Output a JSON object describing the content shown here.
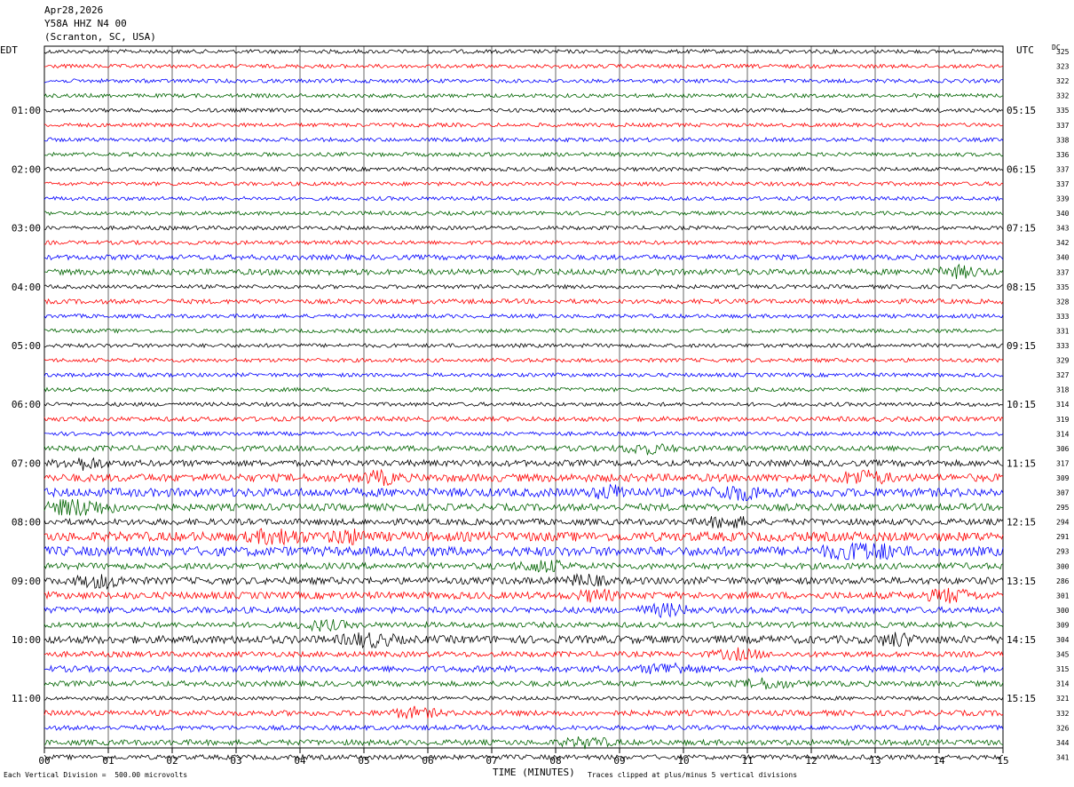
{
  "header": {
    "date": "Apr28,2026",
    "station": "Y58A HHZ N4 00",
    "location": "(Scranton, SC, USA)"
  },
  "left_timezone": "EDT",
  "right_timezone": "UTC",
  "dc_header": "DC",
  "bottom": {
    "xlabel": "TIME (MINUTES)",
    "vertical_division": "Each Vertical Division =  500.00 microvolts",
    "clip_note": "Traces clipped at plus/minus 5 vertical divisions"
  },
  "colors": {
    "black": "#000000",
    "red": "#ff0000",
    "blue": "#0000ff",
    "green": "#006400",
    "grid": "#000000"
  },
  "chart_data": {
    "type": "line",
    "title": "Y58A HHZ N4 00",
    "xlabel": "TIME (MINUTES)",
    "ylabel": "",
    "xlim": [
      0,
      15
    ],
    "x_ticks": [
      "00",
      "01",
      "02",
      "03",
      "04",
      "05",
      "06",
      "07",
      "08",
      "09",
      "10",
      "11",
      "12",
      "13",
      "14",
      "15"
    ],
    "traces_per_hour": 4,
    "trace_colors": [
      "#000000",
      "#ff0000",
      "#0000ff",
      "#006400"
    ],
    "left_time_labels": [
      {
        "row": 4,
        "label": "01:00"
      },
      {
        "row": 8,
        "label": "02:00"
      },
      {
        "row": 12,
        "label": "03:00"
      },
      {
        "row": 16,
        "label": "04:00"
      },
      {
        "row": 20,
        "label": "05:00"
      },
      {
        "row": 24,
        "label": "06:00"
      },
      {
        "row": 28,
        "label": "07:00"
      },
      {
        "row": 32,
        "label": "08:00"
      },
      {
        "row": 36,
        "label": "09:00"
      },
      {
        "row": 40,
        "label": "10:00"
      },
      {
        "row": 44,
        "label": "11:00"
      }
    ],
    "right_time_labels": [
      {
        "row": 4,
        "label": "05:15"
      },
      {
        "row": 8,
        "label": "06:15"
      },
      {
        "row": 12,
        "label": "07:15"
      },
      {
        "row": 16,
        "label": "08:15"
      },
      {
        "row": 20,
        "label": "09:15"
      },
      {
        "row": 24,
        "label": "10:15"
      },
      {
        "row": 28,
        "label": "11:15"
      },
      {
        "row": 32,
        "label": "12:15"
      },
      {
        "row": 36,
        "label": "13:15"
      },
      {
        "row": 40,
        "label": "14:15"
      },
      {
        "row": 44,
        "label": "15:15"
      }
    ],
    "dc_offsets": [
      "325",
      "323",
      "322",
      "332",
      "335",
      "337",
      "338",
      "336",
      "337",
      "337",
      "339",
      "340",
      "343",
      "342",
      "340",
      "337",
      "335",
      "328",
      "333",
      "331",
      "333",
      "329",
      "327",
      "318",
      "314",
      "319",
      "314",
      "306",
      "317",
      "309",
      "307",
      "295",
      "294",
      "291",
      "293",
      "300",
      "286",
      "301",
      "300",
      "309",
      "304",
      "345",
      "315",
      "314",
      "321",
      "332",
      "326",
      "344",
      "341"
    ],
    "trace_activity": [
      1,
      1,
      1,
      1,
      1,
      1,
      1,
      1,
      1,
      1,
      1,
      1,
      1,
      1,
      1.3,
      1.5,
      1,
      1.2,
      1,
      1,
      1,
      1,
      1,
      1,
      1,
      1.2,
      1,
      1.4,
      1.6,
      2,
      2.2,
      1.8,
      1.6,
      2.4,
      2.4,
      1.6,
      1.8,
      1.8,
      1.6,
      1.4,
      2,
      1.4,
      1.6,
      1.4,
      1,
      1.4,
      1.2,
      1.4,
      1.2
    ]
  }
}
